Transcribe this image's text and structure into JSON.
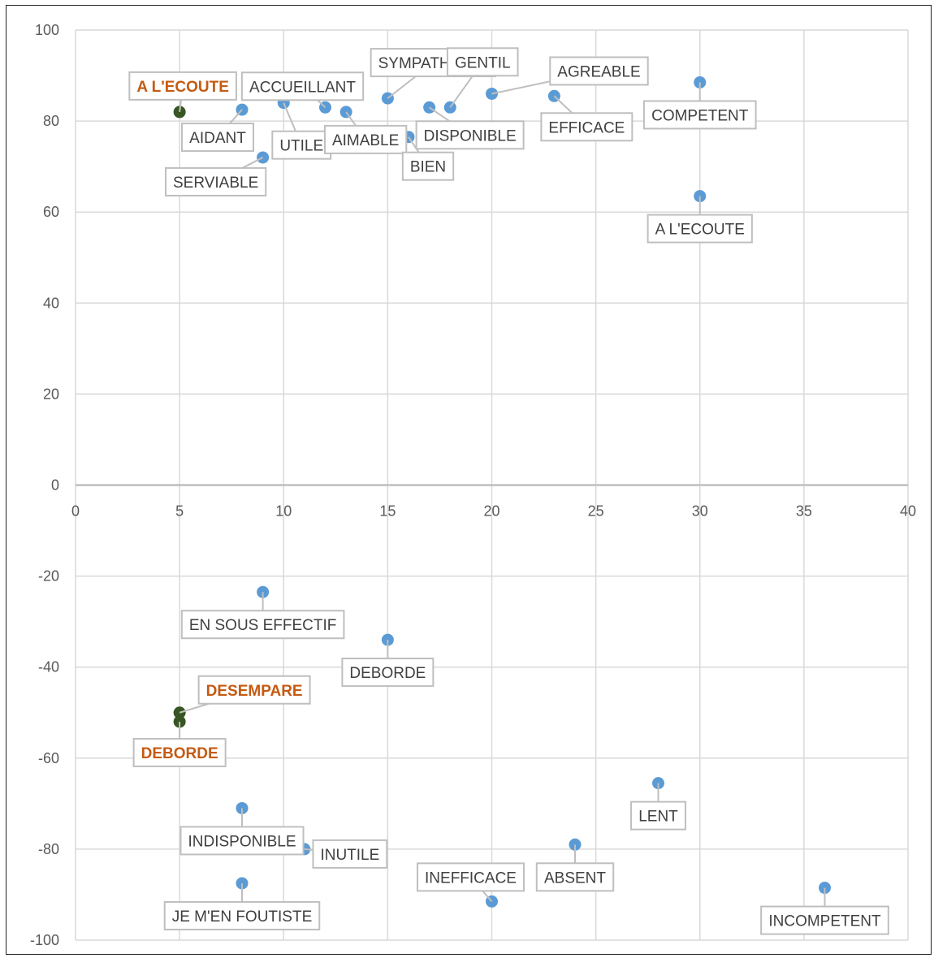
{
  "chart_data": {
    "type": "scatter",
    "title": "",
    "xlabel": "",
    "ylabel": "",
    "xlim": [
      0,
      40
    ],
    "ylim": [
      -100,
      100
    ],
    "xticks": [
      0,
      5,
      10,
      15,
      20,
      25,
      30,
      35,
      40
    ],
    "yticks": [
      -100,
      -80,
      -60,
      -40,
      -20,
      0,
      20,
      40,
      60,
      80,
      100
    ],
    "grid": true,
    "colors": {
      "point": "#5b9bd5",
      "highlight_point": "#375623",
      "highlight_label": "#c55a11",
      "grid": "#d9d9d9",
      "axis_zero": "#bfbfbf"
    },
    "points": [
      {
        "label": "A L'ECOUTE",
        "x": 5,
        "y": 82,
        "highlight": true
      },
      {
        "label": "AIDANT",
        "x": 8,
        "y": 82.5
      },
      {
        "label": "UTILE",
        "x": 10,
        "y": 84
      },
      {
        "label": "SERVIABLE",
        "x": 9,
        "y": 72
      },
      {
        "label": "ACCUEILLANT",
        "x": 12,
        "y": 83
      },
      {
        "label": "AIMABLE",
        "x": 13,
        "y": 82
      },
      {
        "label": "SYMPATHIQUE",
        "x": 15,
        "y": 85
      },
      {
        "label": "BIEN",
        "x": 16,
        "y": 76.5
      },
      {
        "label": "DISPONIBLE",
        "x": 17,
        "y": 83
      },
      {
        "label": "GENTIL",
        "x": 18,
        "y": 83
      },
      {
        "label": "AGREABLE",
        "x": 20,
        "y": 86
      },
      {
        "label": "EFFICACE",
        "x": 23,
        "y": 85.5
      },
      {
        "label": "COMPETENT",
        "x": 30,
        "y": 88.5
      },
      {
        "label": "A L'ECOUTE",
        "x": 30,
        "y": 63.5
      },
      {
        "label": "EN SOUS EFFECTIF",
        "x": 9,
        "y": -23.5
      },
      {
        "label": "DEBORDE",
        "x": 15,
        "y": -34
      },
      {
        "label": "DESEMPARE",
        "x": 5,
        "y": -50,
        "highlight": true
      },
      {
        "label": "DEBORDE",
        "x": 5,
        "y": -52,
        "highlight": true
      },
      {
        "label": "INDISPONIBLE",
        "x": 8,
        "y": -71
      },
      {
        "label": "INUTILE",
        "x": 11,
        "y": -80
      },
      {
        "label": "JE M'EN FOUTISTE",
        "x": 8,
        "y": -87.5
      },
      {
        "label": "INEFFICACE",
        "x": 20,
        "y": -91.5
      },
      {
        "label": "ABSENT",
        "x": 24,
        "y": -79
      },
      {
        "label": "LENT",
        "x": 28,
        "y": -65.5
      },
      {
        "label": "INCOMPETENT",
        "x": 36,
        "y": -88.5
      }
    ]
  }
}
